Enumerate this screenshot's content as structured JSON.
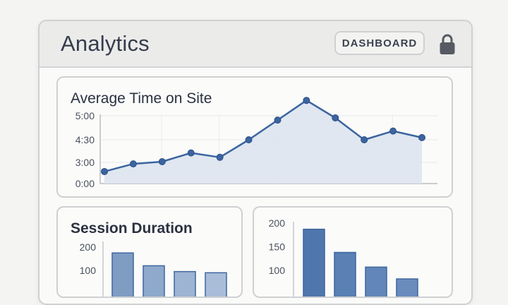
{
  "app": {
    "title": "Analytics",
    "dashboard_button": "DASHBOARD",
    "lock_icon": "lock-icon"
  },
  "colors": {
    "line": "#3b64a0",
    "area": "#dde4ee",
    "bar_dark": "#5a7fb2",
    "bar_light": "#8aa6c9"
  },
  "chart_data": [
    {
      "type": "area",
      "title": "Average Time on Site",
      "y_ticks": [
        "5:00",
        "4:30",
        "3:00",
        "0:00"
      ],
      "points": [
        1.1,
        1.8,
        2.0,
        2.8,
        2.4,
        4.0,
        5.8,
        7.6,
        6.0,
        4.0,
        4.8,
        4.2
      ],
      "grid": true
    },
    {
      "type": "bar",
      "title": "Session Duration",
      "y_ticks": [
        "200",
        "100"
      ],
      "values": [
        175,
        120,
        95,
        90
      ],
      "ylim": [
        0,
        200
      ]
    },
    {
      "type": "bar",
      "title": "",
      "y_ticks": [
        "200",
        "150",
        "100"
      ],
      "values": [
        187,
        138,
        107,
        82
      ],
      "ylim": [
        0,
        200
      ]
    }
  ]
}
